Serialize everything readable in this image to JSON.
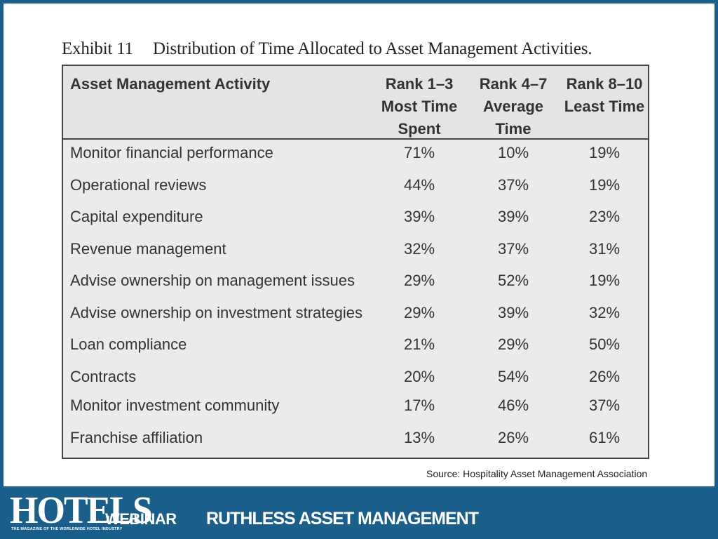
{
  "exhibit": {
    "label": "Exhibit 11",
    "title": "Distribution of Time Allocated to Asset Management Activities."
  },
  "table": {
    "headers": {
      "activity": "Asset Management Activity",
      "col1": [
        "Rank 1–3",
        "Most Time",
        "Spent"
      ],
      "col2": [
        "Rank  4–7",
        "Average",
        "Time"
      ],
      "col3": [
        "Rank 8–10",
        "Least Time"
      ]
    },
    "rows": [
      {
        "activity": "Monitor financial performance",
        "v1": "71%",
        "v2": "10%",
        "v3": "19%"
      },
      {
        "activity": "Operational reviews",
        "v1": "44%",
        "v2": "37%",
        "v3": "19%"
      },
      {
        "activity": "Capital expenditure",
        "v1": "39%",
        "v2": "39%",
        "v3": "23%"
      },
      {
        "activity": "Revenue management",
        "v1": "32%",
        "v2": "37%",
        "v3": "31%"
      },
      {
        "activity": "Advise ownership on management issues",
        "v1": "29%",
        "v2": "52%",
        "v3": "19%"
      },
      {
        "activity": "Advise ownership on investment strategies",
        "v1": "29%",
        "v2": "39%",
        "v3": "32%"
      },
      {
        "activity": "Loan compliance",
        "v1": "21%",
        "v2": "29%",
        "v3": "50%"
      },
      {
        "activity": "Contracts",
        "v1": "20%",
        "v2": "54%",
        "v3": "26%"
      },
      {
        "activity": "Monitor investment community",
        "v1": "17%",
        "v2": "46%",
        "v3": "37%"
      },
      {
        "activity": "Franchise affiliation",
        "v1": "13%",
        "v2": "26%",
        "v3": "61%"
      }
    ]
  },
  "source": "Source: Hospitality Asset Management Association",
  "footer": {
    "logo": "HOTELS",
    "logo_tagline": "THE MAGAZINE OF THE WORLDWIDE HOTEL INDUSTRY",
    "webinar": "WEBINAR",
    "title": "RUTHLESS ASSET MANAGEMENT"
  },
  "colors": {
    "frame": "#1a5f8a",
    "table_bg": "#ebebeb"
  }
}
